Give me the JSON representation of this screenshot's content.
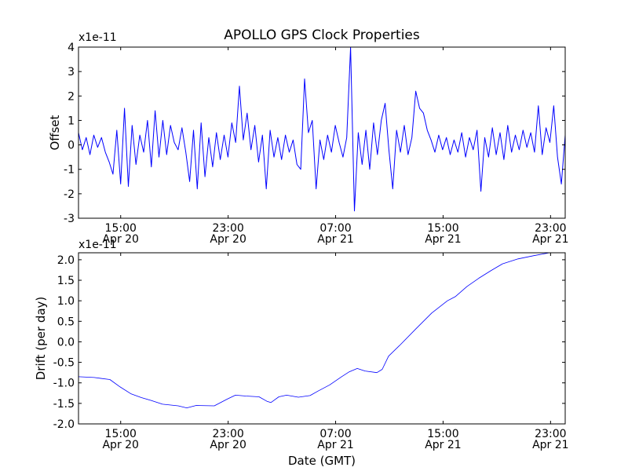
{
  "chart_data": [
    {
      "type": "line",
      "title": "APOLLO GPS Clock Properties",
      "xlabel": "",
      "ylabel": "Offset",
      "y_multiplier": "x1e-11",
      "x_units": "hours since Apr 20 00:00 GMT",
      "xlim": [
        11.86,
        48.09
      ],
      "ylim": [
        -3,
        4
      ],
      "yticks": [
        -3,
        -2,
        -1,
        0,
        1,
        2,
        3,
        4
      ],
      "ytick_labels": [
        "-3",
        "-2",
        "-1",
        "0",
        "1",
        "2",
        "3",
        "4"
      ],
      "xticks": [
        15,
        23,
        31,
        39,
        47
      ],
      "xtick_labels": [
        [
          "15:00",
          "Apr 20"
        ],
        [
          "23:00",
          "Apr 20"
        ],
        [
          "07:00",
          "Apr 21"
        ],
        [
          "15:00",
          "Apr 21"
        ],
        [
          "23:00",
          "Apr 21"
        ]
      ],
      "series": [
        {
          "name": "Offset",
          "color": "#0000ff",
          "x_start": 11.86,
          "x_end": 48.09,
          "values": [
            0.5,
            -0.2,
            0.3,
            -0.4,
            0.4,
            -0.1,
            0.3,
            -0.3,
            -0.7,
            -1.2,
            0.6,
            -1.6,
            1.5,
            -1.7,
            0.8,
            -0.8,
            0.4,
            -0.3,
            1.0,
            -0.9,
            1.4,
            -0.5,
            1.0,
            -0.4,
            0.8,
            0.1,
            -0.2,
            0.7,
            -0.3,
            -1.5,
            0.6,
            -1.8,
            0.9,
            -1.3,
            0.3,
            -0.9,
            0.5,
            -0.6,
            0.4,
            -0.5,
            0.9,
            0.1,
            2.4,
            0.2,
            1.3,
            -0.2,
            0.8,
            -0.7,
            0.4,
            -1.8,
            0.6,
            -0.5,
            0.3,
            -0.6,
            0.4,
            -0.3,
            0.2,
            -0.8,
            -1.0,
            2.7,
            0.5,
            1.0,
            -1.8,
            0.2,
            -0.6,
            0.4,
            -0.3,
            0.8,
            0.1,
            -0.5,
            0.3,
            4.0,
            -2.7,
            0.5,
            -0.8,
            0.6,
            -1.0,
            0.9,
            -0.4,
            1.0,
            1.7,
            -0.2,
            -1.8,
            0.6,
            -0.3,
            0.8,
            -0.4,
            0.3,
            2.2,
            1.5,
            1.3,
            0.6,
            0.2,
            -0.3,
            0.4,
            -0.2,
            0.3,
            -0.4,
            0.2,
            -0.3,
            0.5,
            -0.5,
            0.3,
            -0.2,
            0.6,
            -1.9,
            0.3,
            -0.5,
            0.7,
            -0.4,
            0.5,
            -0.6,
            0.8,
            -0.3,
            0.4,
            -0.2,
            0.6,
            -0.1,
            0.5,
            -0.3,
            1.6,
            -0.4,
            0.7,
            0.1,
            1.6,
            -0.5,
            -1.6,
            0.4
          ]
        }
      ]
    },
    {
      "type": "line",
      "title": "",
      "xlabel": "Date (GMT)",
      "ylabel": "Drift (per day)",
      "y_multiplier": "x1e-11",
      "x_units": "hours since Apr 20 00:00 GMT",
      "xlim": [
        11.86,
        48.09
      ],
      "ylim": [
        -2.0,
        2.17
      ],
      "yticks": [
        -2.0,
        -1.5,
        -1.0,
        -0.5,
        0.0,
        0.5,
        1.0,
        1.5,
        2.0
      ],
      "ytick_labels": [
        "-2.0",
        "-1.5",
        "-1.0",
        "-0.5",
        "0.0",
        "0.5",
        "1.0",
        "1.5",
        "2.0"
      ],
      "xticks": [
        15,
        23,
        31,
        39,
        47
      ],
      "xtick_labels": [
        [
          "15:00",
          "Apr 20"
        ],
        [
          "23:00",
          "Apr 20"
        ],
        [
          "07:00",
          "Apr 21"
        ],
        [
          "15:00",
          "Apr 21"
        ],
        [
          "23:00",
          "Apr 21"
        ]
      ],
      "series": [
        {
          "name": "Drift",
          "color": "#0000ff",
          "x": [
            11.86,
            13.03,
            14.2,
            14.96,
            15.78,
            16.54,
            17.29,
            18.11,
            19.28,
            19.92,
            20.62,
            21.97,
            22.96,
            23.55,
            24.31,
            25.3,
            25.89,
            26.18,
            26.77,
            27.35,
            28.23,
            29.1,
            29.69,
            30.56,
            31.44,
            32.02,
            32.61,
            33.19,
            34.07,
            34.47,
            34.94,
            35.82,
            36.99,
            38.15,
            39.32,
            39.91,
            40.78,
            41.66,
            42.54,
            43.42,
            44.58,
            45.75,
            46.92,
            48.09
          ],
          "y": [
            -0.85,
            -0.87,
            -0.92,
            -1.1,
            -1.27,
            -1.36,
            -1.43,
            -1.52,
            -1.56,
            -1.61,
            -1.55,
            -1.56,
            -1.39,
            -1.3,
            -1.32,
            -1.34,
            -1.45,
            -1.48,
            -1.34,
            -1.3,
            -1.35,
            -1.31,
            -1.2,
            -1.05,
            -0.85,
            -0.73,
            -0.65,
            -0.71,
            -0.75,
            -0.67,
            -0.35,
            -0.07,
            0.32,
            0.7,
            1.0,
            1.1,
            1.35,
            1.55,
            1.73,
            1.9,
            2.02,
            2.1,
            2.18,
            2.18
          ]
        }
      ]
    }
  ]
}
